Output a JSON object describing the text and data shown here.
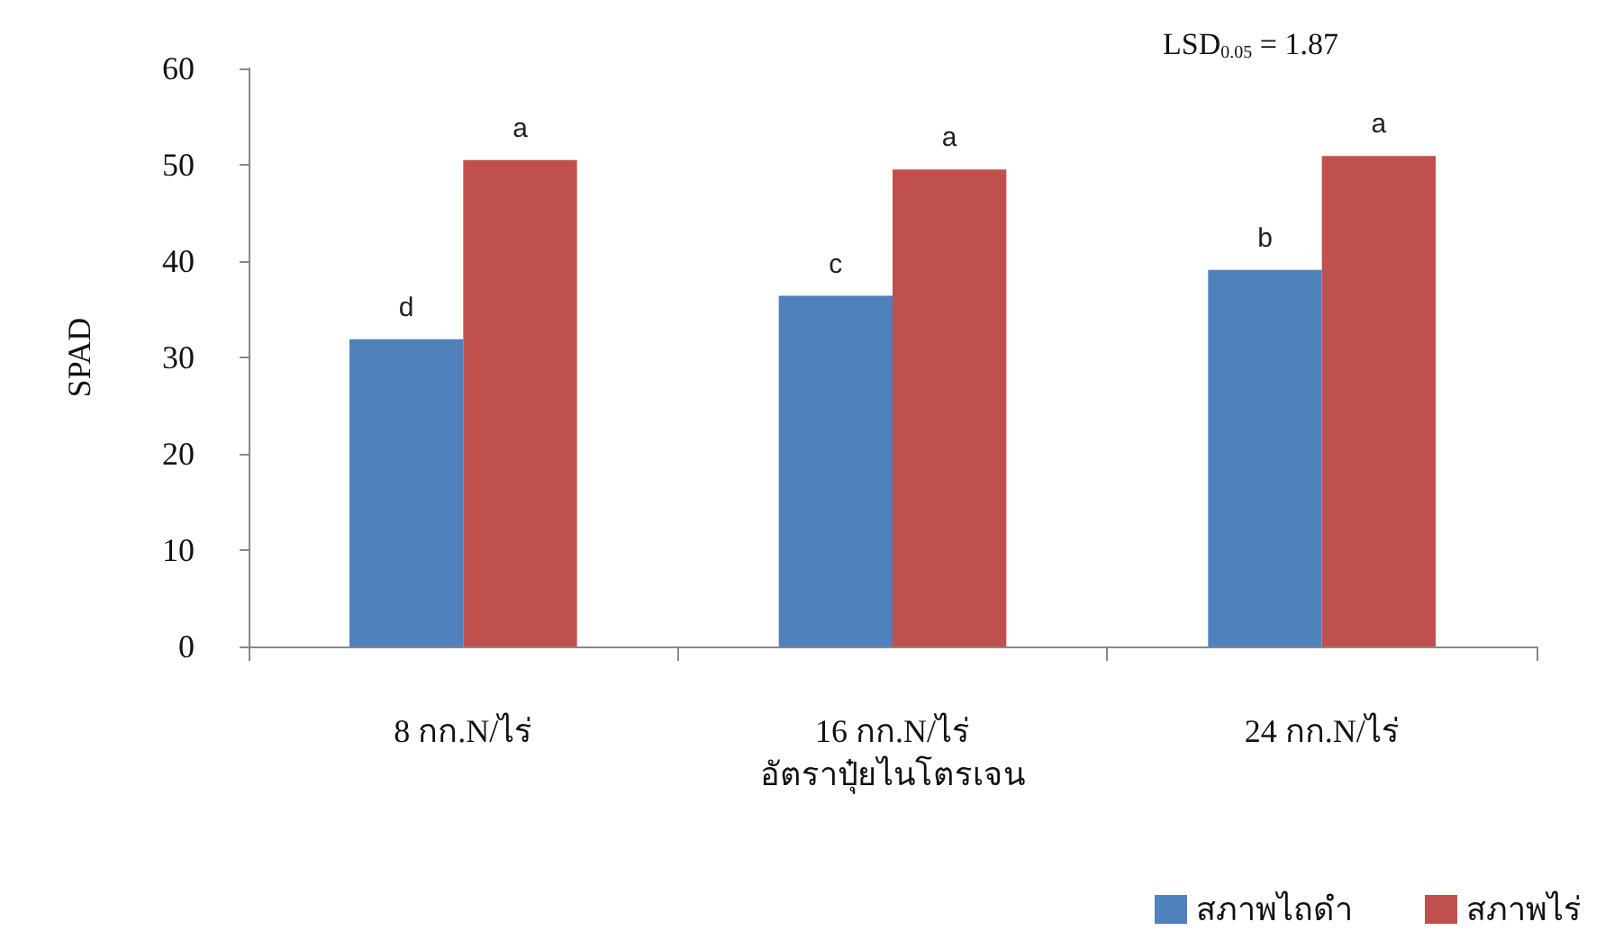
{
  "chart_data": {
    "type": "bar",
    "xlabel": "อัตราปุ๋ยไนโตรเจน",
    "ylabel": "SPAD",
    "categories": [
      "8 กก.N/ไร่",
      "16 กก.N/ไร่",
      "24 กก.N/ไร่"
    ],
    "series": [
      {
        "name": "สภาพไถดำ",
        "color": "#4f81bd",
        "values": [
          31.9,
          36.4,
          39.1
        ],
        "value_labels": [
          "d",
          "c",
          "b"
        ]
      },
      {
        "name": "สภาพไร่",
        "color": "#c0504d",
        "values": [
          50.5,
          49.5,
          50.9
        ],
        "value_labels": [
          "a",
          "a",
          "a"
        ]
      }
    ],
    "ylim": [
      0,
      60
    ],
    "yticks": [
      0,
      10,
      20,
      30,
      40,
      50,
      60
    ],
    "grid": false,
    "legend": "bottom right",
    "annotations": [
      "LSD$_{0.05}$ = 1.87"
    ]
  }
}
